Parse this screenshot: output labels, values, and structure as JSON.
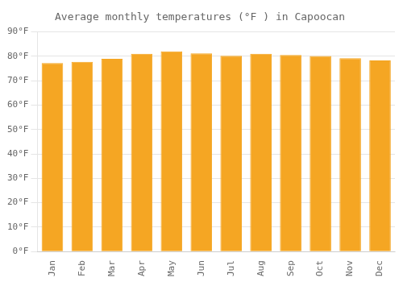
{
  "chart_data": {
    "type": "bar",
    "title": "Average monthly temperatures (°F ) in Capoocan",
    "categories": [
      "Jan",
      "Feb",
      "Mar",
      "Apr",
      "May",
      "Jun",
      "Jul",
      "Aug",
      "Sep",
      "Oct",
      "Nov",
      "Dec"
    ],
    "values": [
      77.2,
      77.7,
      79.0,
      81.0,
      82.0,
      81.2,
      80.2,
      81.0,
      80.5,
      80.1,
      79.2,
      78.3
    ],
    "color": "#F5A623",
    "ylim": [
      0,
      90
    ],
    "yticks": [
      {
        "value": 0,
        "label": "0°F"
      },
      {
        "value": 10,
        "label": "10°F"
      },
      {
        "value": 20,
        "label": "20°F"
      },
      {
        "value": 30,
        "label": "30°F"
      },
      {
        "value": 40,
        "label": "40°F"
      },
      {
        "value": 50,
        "label": "50°F"
      },
      {
        "value": 60,
        "label": "60°F"
      },
      {
        "value": 70,
        "label": "70°F"
      },
      {
        "value": 80,
        "label": "80°F"
      },
      {
        "value": 90,
        "label": "90°F"
      }
    ],
    "grid": true
  }
}
